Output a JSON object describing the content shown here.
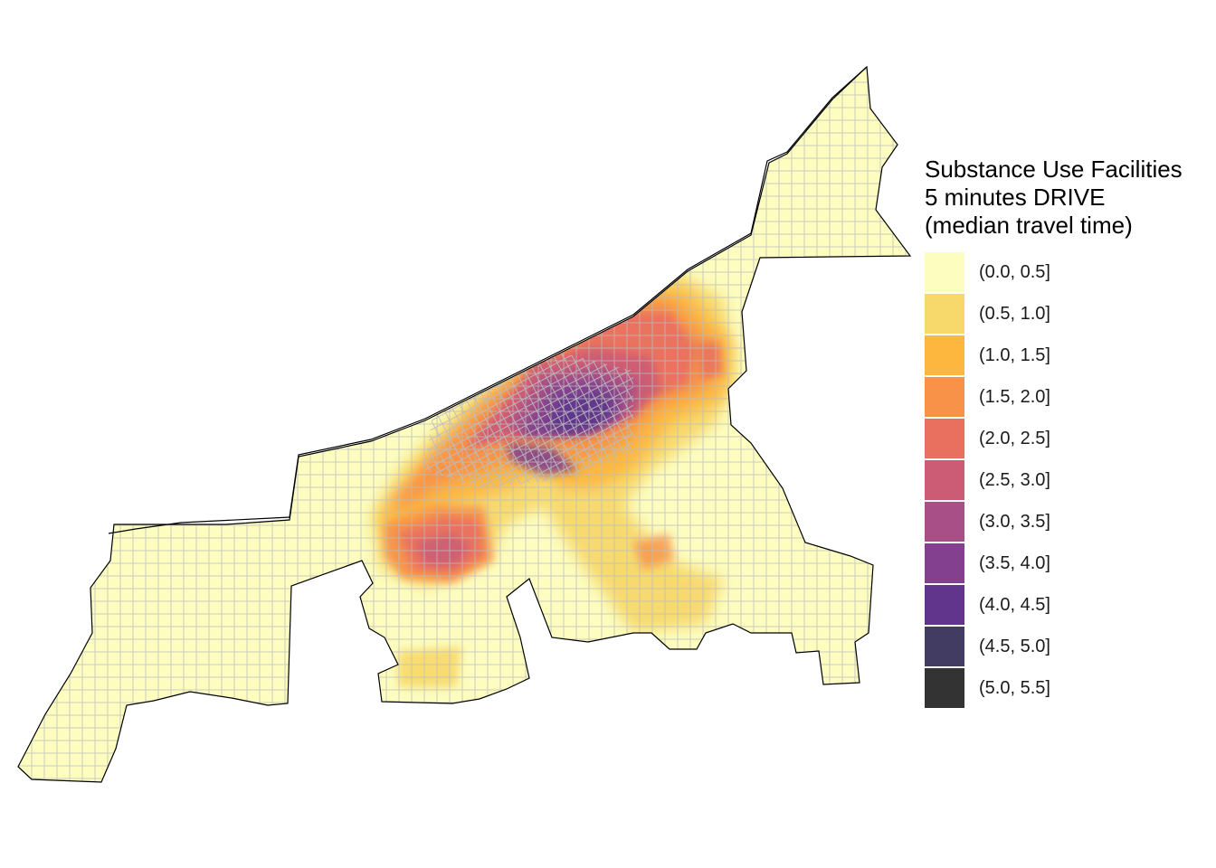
{
  "legend": {
    "title_line1": "Substance Use Facilities",
    "title_line2": "5 minutes DRIVE",
    "title_line3": "(median travel time)",
    "items": [
      {
        "label": "(0.0, 0.5]",
        "color": "#FCFDBF"
      },
      {
        "label": "(0.5, 1.0]",
        "color": "#F7D86A"
      },
      {
        "label": "(1.0, 1.5]",
        "color": "#FDB63E"
      },
      {
        "label": "(1.5, 2.0]",
        "color": "#F79248"
      },
      {
        "label": "(2.0, 2.5]",
        "color": "#E9705F"
      },
      {
        "label": "(2.5, 3.0]",
        "color": "#CC5C75"
      },
      {
        "label": "(3.0, 3.5]",
        "color": "#A84F87"
      },
      {
        "label": "(3.5, 4.0]",
        "color": "#82408F"
      },
      {
        "label": "(4.0, 4.5]",
        "color": "#60358B"
      },
      {
        "label": "(4.5, 5.0]",
        "color": "#433C62"
      },
      {
        "label": "(5.0, 5.5]",
        "color": "#333333"
      }
    ]
  },
  "map": {
    "boundary_color": "#000000",
    "street_color": "#BBBBBB"
  }
}
